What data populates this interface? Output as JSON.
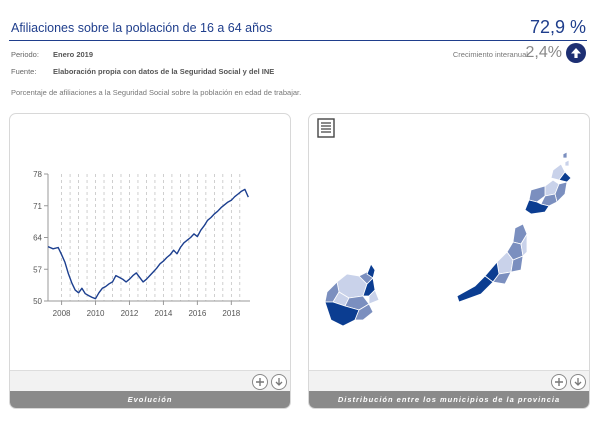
{
  "header": {
    "title": "Afiliaciones sobre la población de 16 a 64 años",
    "value": "72,9 %"
  },
  "meta": {
    "period_label": "Periodo:",
    "period_value": "Enero 2019",
    "source_label": "Fuente:",
    "source_value": "Elaboración propia con datos de la Seguridad Social y del INE"
  },
  "growth": {
    "label": "Crecimiento interanual:",
    "value": "2,4%",
    "direction": "up-arrow-icon"
  },
  "description": "Porcentaje de afiliaciones a la Seguridad Social sobre la población en edad de trabajar.",
  "panels": {
    "evolution_label": "Evolución",
    "distribution_label": "Distribución entre los municipios de la provincia"
  },
  "colors": {
    "accent": "#1f3e8c",
    "line": "#1c3f8f",
    "footer": "#8a8a8a",
    "map_dark": "#0b3d91",
    "map_mid": "#7b8fbf",
    "map_light": "#c9d2ea"
  },
  "chart_data": {
    "type": "line",
    "title": "",
    "xlabel": "",
    "ylabel": "",
    "x_ticks": [
      "2008",
      "2010",
      "2012",
      "2014",
      "2016",
      "2018"
    ],
    "y_ticks": [
      "50",
      "57",
      "64",
      "71",
      "78"
    ],
    "xlim": [
      2007.2,
      2019.1
    ],
    "ylim": [
      50,
      78
    ],
    "grid": "vertical dashed",
    "series": [
      {
        "x": [
          2007.2,
          2007.5,
          2007.8,
          2008.0,
          2008.2,
          2008.4,
          2008.6,
          2008.8,
          2009.0,
          2009.2,
          2009.4,
          2009.6,
          2009.8,
          2010.0,
          2010.2,
          2010.4,
          2010.6,
          2010.8,
          2011.0,
          2011.2,
          2011.4,
          2011.6,
          2011.8,
          2012.0,
          2012.2,
          2012.4,
          2012.6,
          2012.8,
          2013.0,
          2013.2,
          2013.4,
          2013.6,
          2013.8,
          2014.0,
          2014.2,
          2014.4,
          2014.6,
          2014.8,
          2015.0,
          2015.2,
          2015.4,
          2015.6,
          2015.8,
          2016.0,
          2016.2,
          2016.4,
          2016.6,
          2016.8,
          2017.0,
          2017.2,
          2017.4,
          2017.6,
          2017.8,
          2018.0,
          2018.2,
          2018.4,
          2018.6,
          2018.8,
          2019.0
        ],
        "values": [
          62.0,
          61.5,
          61.8,
          60.2,
          58.5,
          56.0,
          54.0,
          52.4,
          51.8,
          52.8,
          51.6,
          51.2,
          50.8,
          50.5,
          51.8,
          52.8,
          53.2,
          53.8,
          54.2,
          55.6,
          55.2,
          54.8,
          54.2,
          54.8,
          55.6,
          56.2,
          55.2,
          54.2,
          54.8,
          55.6,
          56.4,
          57.2,
          58.2,
          58.8,
          59.6,
          60.2,
          61.2,
          60.4,
          61.8,
          62.8,
          63.4,
          64.0,
          64.8,
          64.2,
          65.6,
          66.6,
          67.8,
          68.4,
          69.2,
          69.8,
          70.6,
          71.2,
          71.8,
          72.2,
          73.0,
          73.6,
          74.2,
          74.6,
          72.9
        ]
      }
    ]
  }
}
